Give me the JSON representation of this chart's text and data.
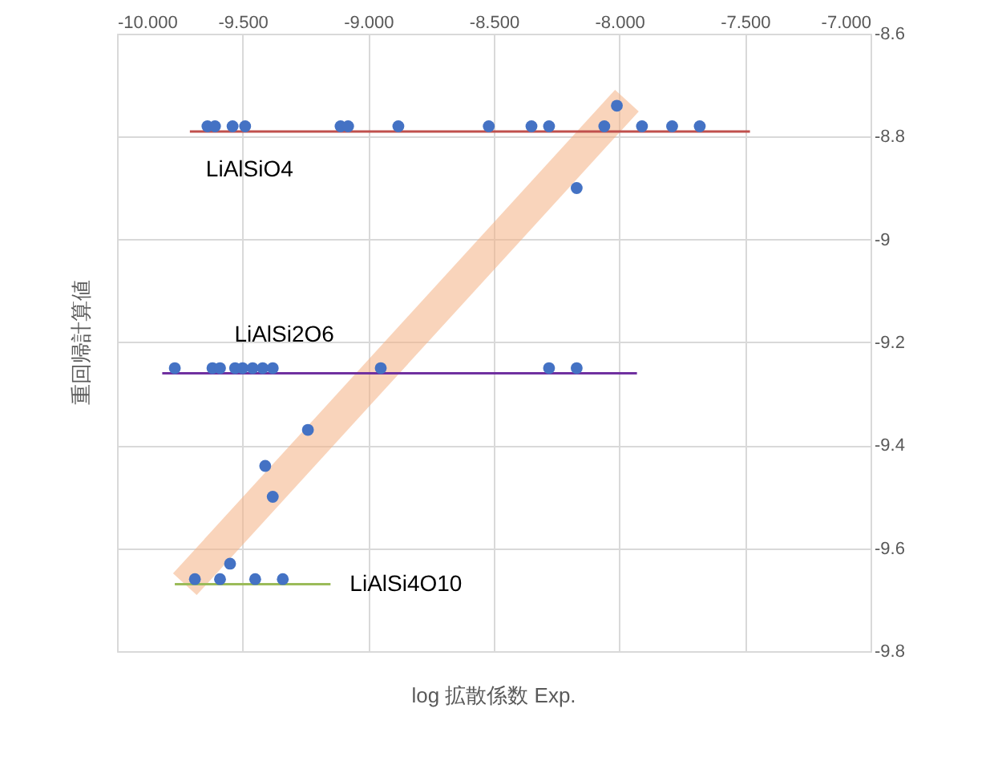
{
  "chart_data": {
    "type": "scatter",
    "xlabel": "log 拡散係数 Exp.",
    "ylabel": "重回帰計算値",
    "xlim": [
      -10,
      -7
    ],
    "ylim": [
      -9.8,
      -8.6
    ],
    "xticks": [
      {
        "value": -10,
        "label": "-10.000"
      },
      {
        "value": -9.5,
        "label": "-9.500"
      },
      {
        "value": -9,
        "label": "-9.000"
      },
      {
        "value": -8.5,
        "label": "-8.500"
      },
      {
        "value": -8,
        "label": "-8.000"
      },
      {
        "value": -7.5,
        "label": "-7.500"
      },
      {
        "value": -7,
        "label": "-7.000"
      }
    ],
    "yticks": [
      -8.6,
      -8.8,
      -9,
      -9.2,
      -9.4,
      -9.6,
      -9.8
    ],
    "grid": true,
    "marker": "circle",
    "series": [
      {
        "type": "line",
        "marker": "none",
        "color": "#f4b183",
        "x": [
          -9.73,
          -7.97
        ],
        "values": [
          -9.67,
          -8.73
        ]
      },
      {
        "type": "line",
        "marker": "none",
        "name": "LiAlSiO4",
        "color": "#c0504d",
        "x": [
          -9.71,
          -7.48
        ],
        "values": [
          -8.79,
          -8.79
        ]
      },
      {
        "type": "line",
        "marker": "none",
        "name": "LiAlSi2O6",
        "color": "#7030a0",
        "x": [
          -9.82,
          -7.93
        ],
        "values": [
          -9.26,
          -9.26
        ]
      },
      {
        "type": "line",
        "marker": "none",
        "name": "LiAlSi4O10",
        "color": "#9bbb59",
        "x": [
          -9.77,
          -9.15
        ],
        "values": [
          -9.67,
          -9.67
        ]
      },
      {
        "color": "#4472c4",
        "x": [
          -9.64,
          -9.61,
          -9.54,
          -9.49,
          -9.11,
          -9.08,
          -8.88,
          -8.52,
          -8.35,
          -8.28,
          -8.06,
          -7.91,
          -7.79,
          -7.68,
          -8.01,
          -8.17,
          -9.77,
          -9.62,
          -9.59,
          -9.53,
          -9.5,
          -9.46,
          -9.42,
          -9.38,
          -8.95,
          -8.28,
          -8.17,
          -9.24,
          -9.41,
          -9.38,
          -9.55,
          -9.69,
          -9.59,
          -9.45,
          -9.34
        ],
        "values": [
          -8.78,
          -8.78,
          -8.78,
          -8.78,
          -8.78,
          -8.78,
          -8.78,
          -8.78,
          -8.78,
          -8.78,
          -8.78,
          -8.78,
          -8.78,
          -8.78,
          -8.74,
          -8.9,
          -9.25,
          -9.25,
          -9.25,
          -9.25,
          -9.25,
          -9.25,
          -9.25,
          -9.25,
          -9.25,
          -9.25,
          -9.25,
          -9.37,
          -9.44,
          -9.5,
          -9.63,
          -9.66,
          -9.66,
          -9.66,
          -9.66
        ]
      }
    ]
  }
}
